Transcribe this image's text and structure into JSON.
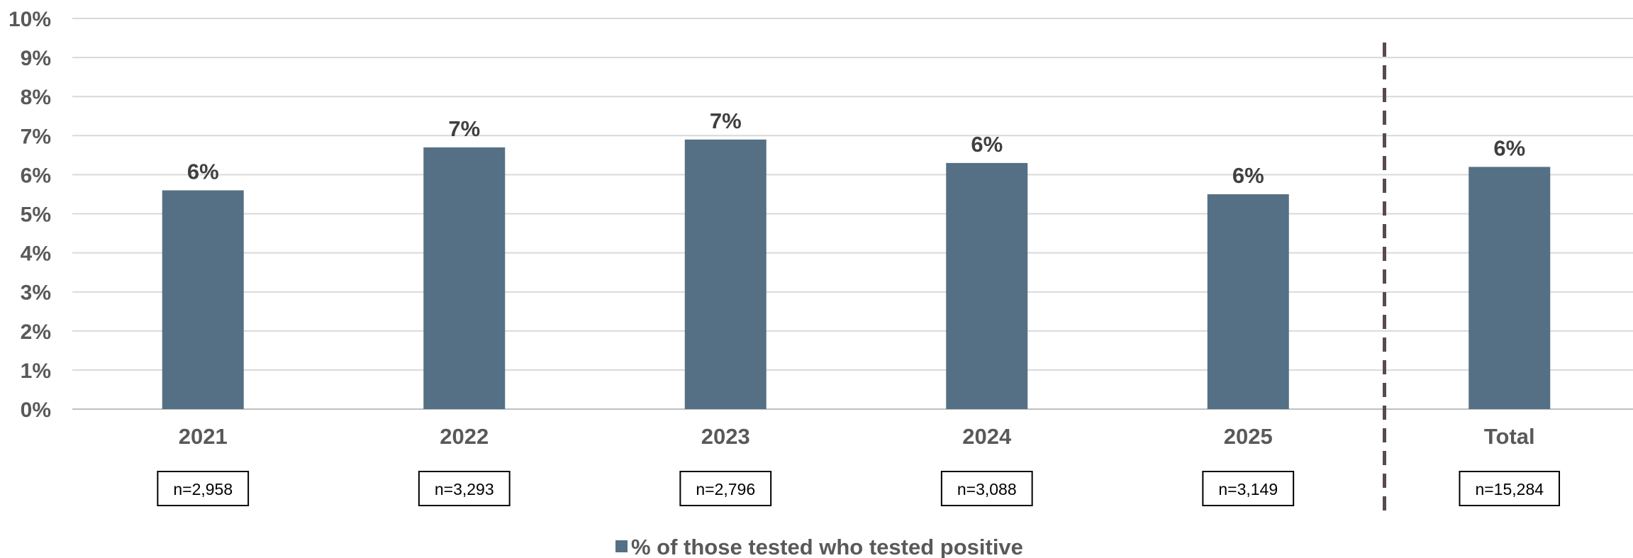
{
  "chart_data": {
    "type": "bar",
    "categories": [
      "2021",
      "2022",
      "2023",
      "2024",
      "2025",
      "Total"
    ],
    "series": [
      {
        "name": "% of those tested who tested positive",
        "values": [
          5.6,
          6.7,
          6.9,
          6.3,
          5.5,
          6.2
        ],
        "data_labels": [
          "6%",
          "7%",
          "7%",
          "6%",
          "6%",
          "6%"
        ],
        "sample_sizes": [
          "n=2,958",
          "n=3,293",
          "n=2,796",
          "n=3,088",
          "n=3,149",
          "n=15,284"
        ]
      }
    ],
    "yticks": [
      "0%",
      "1%",
      "2%",
      "3%",
      "4%",
      "5%",
      "6%",
      "7%",
      "8%",
      "9%",
      "10%"
    ],
    "ylim": [
      0,
      10
    ],
    "grid": true,
    "legend_position": "bottom-center",
    "divider_before_category": "Total",
    "colors": {
      "bar": "#557085",
      "grid": "#d9d9d9",
      "divider": "#574b4f",
      "tick_text": "#595959",
      "label_text": "#404040"
    }
  }
}
